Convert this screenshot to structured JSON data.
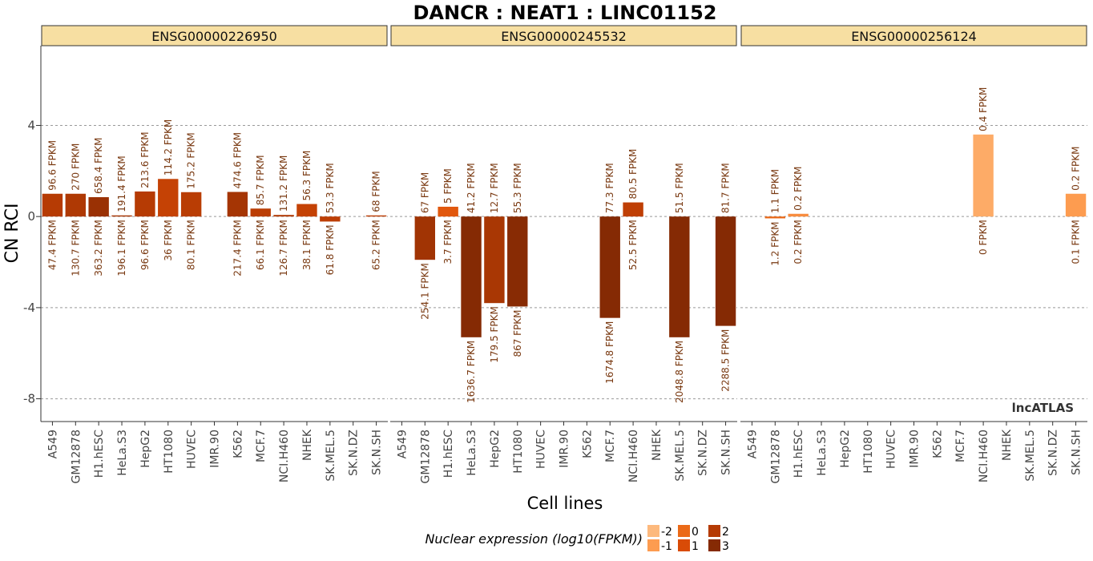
{
  "chart_data": {
    "type": "bar",
    "title": "DANCR : NEAT1 : LINC01152",
    "xlabel": "Cell lines",
    "ylabel": "CN RCI",
    "ylim": [
      -9,
      7.5
    ],
    "yticks": [
      4,
      0,
      -4,
      -8
    ],
    "ytick_labels": [
      "4",
      "0",
      "-4",
      "-8"
    ],
    "grid": true,
    "watermark": "lncATLAS",
    "categories": [
      "A549",
      "GM12878",
      "H1.hESC",
      "HeLa.S3",
      "HepG2",
      "HT1080",
      "HUVEC",
      "IMR.90",
      "K562",
      "MCF.7",
      "NCI.H460",
      "NHEK",
      "SK.MEL.5",
      "SK.N.DZ",
      "SK.N.SH"
    ],
    "legend": {
      "title": "Nuclear expression (log10(FPKM))",
      "position": "bottom",
      "items": [
        {
          "label": "-2",
          "color": "#FDB97D"
        },
        {
          "label": "-1",
          "color": "#FD9C50"
        },
        {
          "label": "0",
          "color": "#EB6A18"
        },
        {
          "label": "1",
          "color": "#D94B07"
        },
        {
          "label": "2",
          "color": "#B53B04"
        },
        {
          "label": "3",
          "color": "#852A04"
        }
      ]
    },
    "panels": [
      {
        "gene": "ENSG00000226950",
        "values": [
          1.0,
          1.0,
          0.85,
          0.05,
          1.1,
          1.65,
          1.07,
          null,
          1.08,
          0.35,
          0.07,
          0.55,
          -0.22,
          null,
          0.05
        ],
        "nuclear_log10": [
          1.98,
          2.12,
          2.56,
          2.29,
          1.98,
          1.56,
          1.9,
          null,
          2.34,
          1.82,
          2.1,
          1.58,
          1.79,
          null,
          1.81
        ],
        "top_labels": [
          "96.6 FPKM",
          "270 FPKM",
          "658.4 FPKM",
          "191.4 FPKM",
          "213.6 FPKM",
          "114.2 FPKM",
          "175.2 FPKM",
          "",
          "474.6 FPKM",
          "85.7 FPKM",
          "131.2 FPKM",
          "56.3 FPKM",
          "53.3 FPKM",
          "",
          "68 FPKM"
        ],
        "bottom_labels": [
          "47.4 FPKM",
          "130.7 FPKM",
          "363.2 FPKM",
          "196.1 FPKM",
          "96.6 FPKM",
          "36 FPKM",
          "80.1 FPKM",
          "",
          "217.4 FPKM",
          "66.1 FPKM",
          "126.7 FPKM",
          "38.1 FPKM",
          "61.8 FPKM",
          "",
          "65.2 FPKM"
        ]
      },
      {
        "gene": "ENSG00000245532",
        "values": [
          null,
          -1.9,
          0.43,
          -5.3,
          -3.8,
          -3.95,
          null,
          null,
          null,
          -4.45,
          0.62,
          null,
          -5.3,
          null,
          -4.8
        ],
        "nuclear_log10": [
          null,
          2.41,
          0.57,
          3.21,
          2.25,
          2.94,
          null,
          null,
          null,
          3.22,
          1.72,
          null,
          3.31,
          null,
          3.36
        ],
        "top_labels": [
          "",
          "67 FPKM",
          "5 FPKM",
          "41.2 FPKM",
          "12.7 FPKM",
          "55.3 FPKM",
          "",
          "",
          "",
          "77.3 FPKM",
          "80.5 FPKM",
          "",
          "51.5 FPKM",
          "",
          "81.7 FPKM"
        ],
        "bottom_labels": [
          "",
          "254.1 FPKM",
          "3.7 FPKM",
          "1636.7 FPKM",
          "179.5 FPKM",
          "867 FPKM",
          "",
          "",
          "",
          "1674.8 FPKM",
          "52.5 FPKM",
          "",
          "2048.8 FPKM",
          "",
          "2288.5 FPKM"
        ]
      },
      {
        "gene": "ENSG00000256124",
        "values": [
          null,
          -0.08,
          0.12,
          null,
          null,
          null,
          null,
          null,
          null,
          null,
          3.6,
          null,
          null,
          null,
          1.0
        ],
        "nuclear_log10": [
          null,
          0.08,
          -0.7,
          null,
          null,
          null,
          null,
          null,
          null,
          null,
          -1.5,
          null,
          null,
          null,
          -1.0
        ],
        "top_labels": [
          "",
          "1.1 FPKM",
          "0.2 FPKM",
          "",
          "",
          "",
          "",
          "",
          "",
          "",
          "0.4 FPKM",
          "",
          "",
          "",
          "0.2 FPKM"
        ],
        "bottom_labels": [
          "",
          "1.2 FPKM",
          "0.2 FPKM",
          "",
          "",
          "",
          "",
          "",
          "",
          "",
          "0 FPKM",
          "",
          "",
          "",
          "0.1 FPKM"
        ]
      }
    ]
  }
}
